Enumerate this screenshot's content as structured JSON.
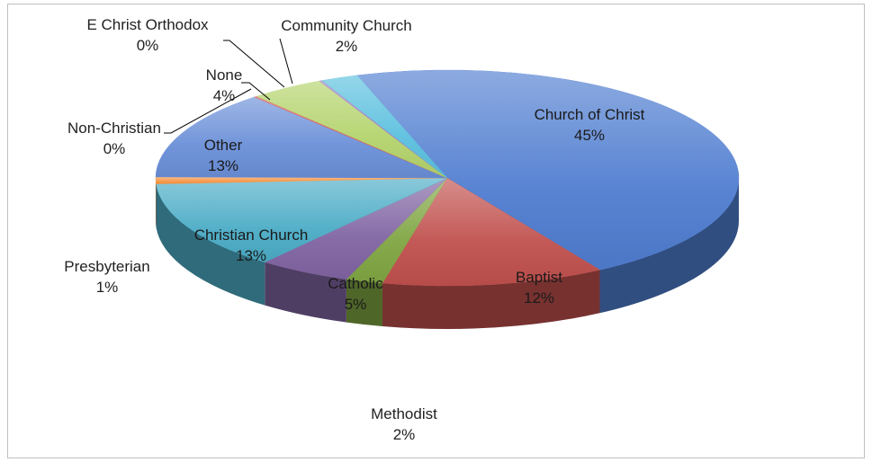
{
  "chart_data": {
    "type": "pie",
    "title": "",
    "start_angle_deg": 0,
    "slices": [
      {
        "label": "Church of Christ",
        "value": 45,
        "pct": "45%",
        "color": "#4f7dd0",
        "label_inside": true
      },
      {
        "label": "Baptist",
        "value": 12,
        "pct": "12%",
        "color": "#c0504d",
        "label_inside": true
      },
      {
        "label": "Methodist",
        "value": 2,
        "pct": "2%",
        "color": "#7fa542",
        "label_inside": false
      },
      {
        "label": "Catholic",
        "value": 5,
        "pct": "5%",
        "color": "#8064a2",
        "label_inside": true
      },
      {
        "label": "Christian Church",
        "value": 13,
        "pct": "13%",
        "color": "#4bacc6",
        "label_inside": true
      },
      {
        "label": "Presbyterian",
        "value": 1,
        "pct": "1%",
        "color": "#f79646",
        "label_inside": false
      },
      {
        "label": "Other",
        "value": 13,
        "pct": "13%",
        "color": "#6a8fd8",
        "label_inside": true
      },
      {
        "label": "Non-Christian",
        "value": 0,
        "pct": "0%",
        "color": "#d9534f",
        "label_inside": false
      },
      {
        "label": "None",
        "value": 4,
        "pct": "4%",
        "color": "#b3d36b",
        "label_inside": false
      },
      {
        "label": "E Christ Orthodox",
        "value": 0,
        "pct": "0%",
        "color": "#9b7fc0",
        "label_inside": false
      },
      {
        "label": "Community Church",
        "value": 2,
        "pct": "2%",
        "color": "#5bc0de",
        "label_inside": false
      }
    ]
  }
}
